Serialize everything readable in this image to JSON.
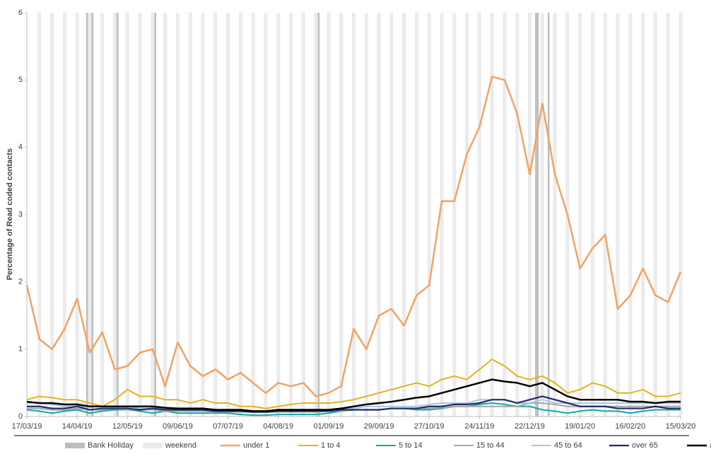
{
  "chart_data": {
    "type": "line",
    "y_label": "Percentage of Read coded contacts",
    "ylim": [
      0,
      6
    ],
    "yticks": [
      0,
      1,
      2,
      3,
      4,
      5,
      6
    ],
    "xlim": [
      "17/03/19",
      "15/03/20"
    ],
    "xticks": [
      "17/03/19",
      "14/04/19",
      "12/05/19",
      "09/06/19",
      "07/07/19",
      "04/08/19",
      "01/09/19",
      "29/09/19",
      "27/10/19",
      "24/11/19",
      "22/12/19",
      "19/01/20",
      "16/02/20",
      "15/03/20"
    ],
    "shading": [
      {
        "name": "Bank Holiday",
        "color": "#bdbdbd",
        "days": 1,
        "dates": [
          "19/04/19",
          "22/04/19",
          "06/05/19",
          "27/05/19",
          "26/08/19",
          "25/12/19",
          "26/12/19",
          "01/01/20"
        ]
      },
      {
        "name": "weekend",
        "color": "#ebebeb",
        "days": 2,
        "dates": [
          "23/03/19",
          "30/03/19",
          "06/04/19",
          "13/04/19",
          "20/04/19",
          "27/04/19",
          "04/05/19",
          "11/05/19",
          "18/05/19",
          "25/05/19",
          "01/06/19",
          "08/06/19",
          "15/06/19",
          "22/06/19",
          "29/06/19",
          "06/07/19",
          "13/07/19",
          "20/07/19",
          "27/07/19",
          "03/08/19",
          "10/08/19",
          "17/08/19",
          "24/08/19",
          "31/08/19",
          "07/09/19",
          "14/09/19",
          "21/09/19",
          "28/09/19",
          "05/10/19",
          "12/10/19",
          "19/10/19",
          "26/10/19",
          "02/11/19",
          "09/11/19",
          "16/11/19",
          "23/11/19",
          "30/11/19",
          "07/12/19",
          "14/12/19",
          "21/12/19",
          "28/12/19",
          "04/01/20",
          "11/01/20",
          "18/01/20",
          "25/01/20",
          "01/02/20",
          "08/02/20",
          "15/02/20",
          "22/02/20",
          "29/02/20",
          "07/03/20",
          "14/03/20"
        ]
      }
    ],
    "x": [
      "17/03/19",
      "24/03/19",
      "31/03/19",
      "07/04/19",
      "14/04/19",
      "21/04/19",
      "28/04/19",
      "05/05/19",
      "12/05/19",
      "19/05/19",
      "26/05/19",
      "02/06/19",
      "09/06/19",
      "16/06/19",
      "23/06/19",
      "30/06/19",
      "07/07/19",
      "14/07/19",
      "21/07/19",
      "28/07/19",
      "04/08/19",
      "11/08/19",
      "18/08/19",
      "25/08/19",
      "01/09/19",
      "08/09/19",
      "15/09/19",
      "22/09/19",
      "29/09/19",
      "06/10/19",
      "13/10/19",
      "20/10/19",
      "27/10/19",
      "03/11/19",
      "10/11/19",
      "17/11/19",
      "24/11/19",
      "01/12/19",
      "08/12/19",
      "15/12/19",
      "22/12/19",
      "29/12/19",
      "05/01/20",
      "12/01/20",
      "19/01/20",
      "26/01/20",
      "02/02/20",
      "09/02/20",
      "16/02/20",
      "23/02/20",
      "01/03/20",
      "08/03/20",
      "15/03/20"
    ],
    "series": [
      {
        "name": "under 1",
        "color": "#f4a261",
        "width": 2.5,
        "values": [
          1.95,
          1.15,
          1.0,
          1.3,
          1.75,
          0.95,
          1.25,
          0.7,
          0.75,
          0.95,
          1.0,
          0.45,
          1.1,
          0.75,
          0.6,
          0.7,
          0.55,
          0.65,
          0.5,
          0.35,
          0.5,
          0.45,
          0.5,
          0.3,
          0.35,
          0.45,
          1.3,
          1.0,
          1.5,
          1.6,
          1.35,
          1.8,
          1.95,
          3.2,
          3.2,
          3.9,
          4.3,
          5.05,
          5.0,
          4.5,
          3.6,
          4.65,
          3.6,
          3.0,
          2.2,
          2.5,
          2.7,
          1.6,
          1.8,
          2.2,
          1.8,
          1.7,
          2.15
        ]
      },
      {
        "name": "1 to 4",
        "color": "#e3b21c",
        "width": 2,
        "values": [
          0.25,
          0.3,
          0.28,
          0.25,
          0.25,
          0.2,
          0.15,
          0.25,
          0.4,
          0.3,
          0.3,
          0.25,
          0.25,
          0.2,
          0.25,
          0.2,
          0.2,
          0.15,
          0.15,
          0.12,
          0.15,
          0.18,
          0.2,
          0.2,
          0.2,
          0.22,
          0.25,
          0.3,
          0.35,
          0.4,
          0.45,
          0.5,
          0.45,
          0.55,
          0.6,
          0.55,
          0.7,
          0.85,
          0.75,
          0.6,
          0.55,
          0.6,
          0.5,
          0.35,
          0.4,
          0.5,
          0.45,
          0.35,
          0.35,
          0.4,
          0.3,
          0.3,
          0.35
        ]
      },
      {
        "name": "5 to 14",
        "color": "#17a99a",
        "width": 2,
        "values": [
          0.1,
          0.08,
          0.05,
          0.08,
          0.1,
          0.05,
          0.08,
          0.1,
          0.1,
          0.08,
          0.05,
          0.08,
          0.05,
          0.05,
          0.05,
          0.05,
          0.05,
          0.03,
          0.02,
          0.02,
          0.03,
          0.03,
          0.03,
          0.03,
          0.05,
          0.08,
          0.1,
          0.1,
          0.1,
          0.12,
          0.12,
          0.1,
          0.1,
          0.12,
          0.15,
          0.15,
          0.18,
          0.2,
          0.18,
          0.15,
          0.15,
          0.1,
          0.08,
          0.05,
          0.08,
          0.1,
          0.08,
          0.08,
          0.05,
          0.08,
          0.1,
          0.1,
          0.1
        ]
      },
      {
        "name": "15 to 44",
        "color": "#a6a6a6",
        "width": 2,
        "values": [
          0.12,
          0.12,
          0.1,
          0.1,
          0.12,
          0.1,
          0.1,
          0.12,
          0.1,
          0.1,
          0.1,
          0.08,
          0.08,
          0.08,
          0.08,
          0.07,
          0.07,
          0.07,
          0.06,
          0.06,
          0.07,
          0.07,
          0.07,
          0.07,
          0.08,
          0.08,
          0.1,
          0.1,
          0.1,
          0.12,
          0.12,
          0.12,
          0.12,
          0.13,
          0.15,
          0.15,
          0.15,
          0.15,
          0.15,
          0.15,
          0.2,
          0.2,
          0.18,
          0.15,
          0.15,
          0.15,
          0.15,
          0.15,
          0.15,
          0.15,
          0.15,
          0.15,
          0.15
        ]
      },
      {
        "name": "45 to 64",
        "color": "#a9c7e1",
        "width": 2,
        "values": [
          0.2,
          0.2,
          0.18,
          0.15,
          0.15,
          0.15,
          0.15,
          0.15,
          0.15,
          0.12,
          0.12,
          0.12,
          0.1,
          0.1,
          0.1,
          0.1,
          0.08,
          0.08,
          0.08,
          0.08,
          0.1,
          0.1,
          0.1,
          0.1,
          0.1,
          0.12,
          0.12,
          0.15,
          0.15,
          0.15,
          0.15,
          0.15,
          0.18,
          0.2,
          0.2,
          0.2,
          0.25,
          0.25,
          0.25,
          0.2,
          0.2,
          0.25,
          0.2,
          0.2,
          0.2,
          0.2,
          0.2,
          0.2,
          0.2,
          0.2,
          0.2,
          0.2,
          0.2
        ]
      },
      {
        "name": "over 65",
        "color": "#1f2a6b",
        "width": 2.2,
        "values": [
          0.15,
          0.15,
          0.12,
          0.12,
          0.15,
          0.1,
          0.12,
          0.12,
          0.12,
          0.1,
          0.12,
          0.1,
          0.1,
          0.1,
          0.1,
          0.08,
          0.08,
          0.08,
          0.07,
          0.07,
          0.08,
          0.08,
          0.08,
          0.08,
          0.08,
          0.1,
          0.1,
          0.1,
          0.1,
          0.12,
          0.12,
          0.12,
          0.15,
          0.15,
          0.18,
          0.18,
          0.2,
          0.25,
          0.25,
          0.2,
          0.25,
          0.3,
          0.25,
          0.2,
          0.15,
          0.15,
          0.15,
          0.12,
          0.12,
          0.12,
          0.15,
          0.12,
          0.12
        ]
      },
      {
        "name": "all ages",
        "color": "#000000",
        "width": 2.5,
        "values": [
          0.22,
          0.2,
          0.2,
          0.18,
          0.18,
          0.15,
          0.15,
          0.15,
          0.15,
          0.15,
          0.15,
          0.13,
          0.12,
          0.12,
          0.12,
          0.1,
          0.1,
          0.1,
          0.08,
          0.08,
          0.1,
          0.1,
          0.1,
          0.1,
          0.1,
          0.12,
          0.15,
          0.18,
          0.2,
          0.22,
          0.25,
          0.28,
          0.3,
          0.35,
          0.4,
          0.45,
          0.5,
          0.55,
          0.52,
          0.5,
          0.45,
          0.5,
          0.4,
          0.3,
          0.25,
          0.25,
          0.25,
          0.25,
          0.22,
          0.22,
          0.2,
          0.22,
          0.22
        ]
      }
    ]
  }
}
